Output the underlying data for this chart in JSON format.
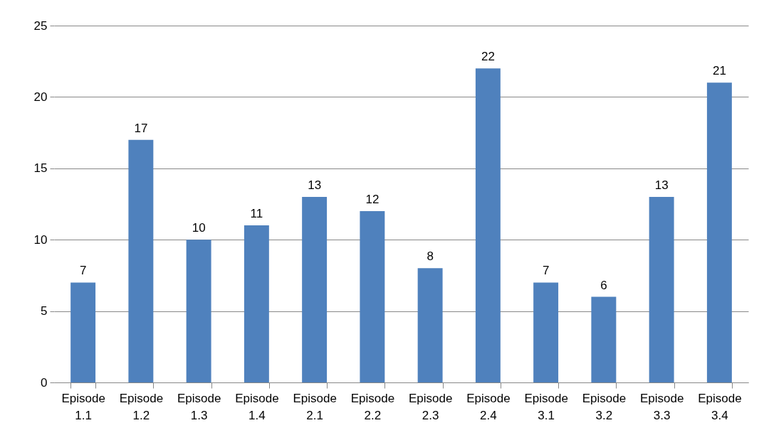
{
  "chart_data": {
    "type": "bar",
    "categories": [
      "Episode 1.1",
      "Episode 1.2",
      "Episode 1.3",
      "Episode 1.4",
      "Episode 2.1",
      "Episode 2.2",
      "Episode 2.3",
      "Episode 2.4",
      "Episode 3.1",
      "Episode 3.2",
      "Episode 3.3",
      "Episode 3.4"
    ],
    "values": [
      7,
      17,
      10,
      11,
      13,
      12,
      8,
      22,
      7,
      6,
      13,
      21
    ],
    "color": "#4f81bd",
    "ylim": [
      0,
      25
    ],
    "yticks": [
      0,
      5,
      10,
      15,
      20,
      25
    ],
    "grid": "y",
    "data_labels": true
  }
}
